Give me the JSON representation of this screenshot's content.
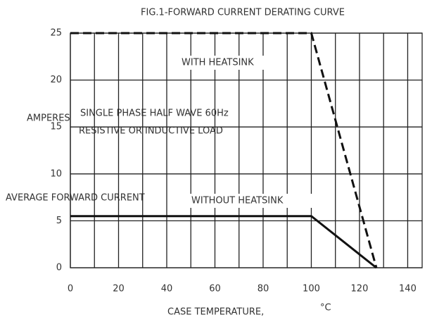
{
  "chart_data": {
    "type": "line",
    "title": "FIG.1-FORWARD CURRENT DERATING CURVE",
    "xlabel": [
      "CASE TEMPERATURE,",
      "°C"
    ],
    "ylabel": [
      "AMPERES",
      "AVERAGE FORWARD CURRENT"
    ],
    "annotations": [
      "SINGLE PHASE HALF WAVE 60Hz",
      "RESISTIVE OR INDUCTIVE LOAD"
    ],
    "xlim": [
      0,
      146
    ],
    "ylim": [
      0,
      25
    ],
    "xticks": [
      0,
      20,
      40,
      60,
      80,
      100,
      120,
      140
    ],
    "x_minor_ticks": [
      10,
      30,
      50,
      70,
      90,
      110,
      130
    ],
    "yticks": [
      0,
      5,
      10,
      15,
      20,
      25
    ],
    "grid": true,
    "series": [
      {
        "name": "WITH HEATSINK",
        "color": "#111111",
        "style": "dashed",
        "x": [
          0,
          100,
          127
        ],
        "values": [
          25,
          25,
          0
        ]
      },
      {
        "name": "WITHOUT HEATSINK",
        "color": "#111111",
        "style": "solid",
        "x": [
          0,
          100,
          127
        ],
        "values": [
          5.5,
          5.5,
          0
        ]
      }
    ]
  }
}
